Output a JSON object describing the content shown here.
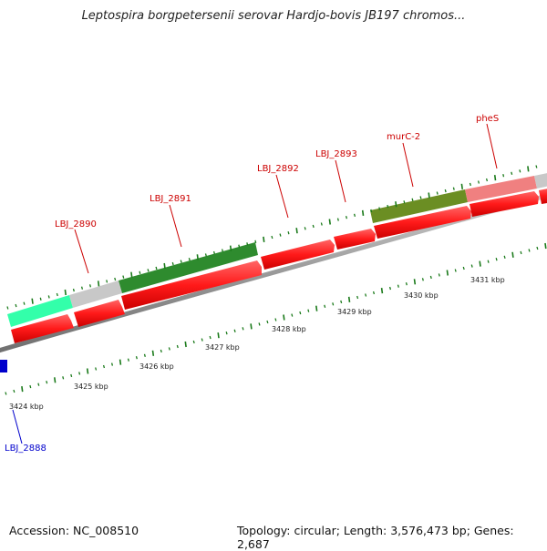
{
  "title": "Leptospira borgpetersenii serovar Hardjo-bovis JB197 chromos...",
  "accession_text": "Accession: NC_008510",
  "summary_text": "Topology: circular; Length: 3,576,473 bp; Genes: 2,687",
  "scale": {
    "tick_labels": [
      "3424 kbp",
      "3425 kbp",
      "3426 kbp",
      "3427 kbp",
      "3428 kbp",
      "3429 kbp",
      "3430 kbp",
      "3431 kbp"
    ]
  },
  "colors": {
    "forward_cds": "#ff1a1a",
    "named_gene_label": "#cc0000",
    "other_gene_label": "#0000cc",
    "backbone": "#9a9a9a",
    "tick": "#1a7a1a"
  },
  "genes": [
    {
      "name": "LBJ_2888",
      "color": "#0000cc"
    },
    {
      "name": "LBJ_2890",
      "color": "#cc0000"
    },
    {
      "name": "LBJ_2891",
      "color": "#cc0000"
    },
    {
      "name": "LBJ_2892",
      "color": "#cc0000"
    },
    {
      "name": "LBJ_2893",
      "color": "#cc0000"
    },
    {
      "name": "murC-2",
      "color": "#cc0000"
    },
    {
      "name": "pheS",
      "color": "#cc0000"
    }
  ],
  "feature_track_colors": [
    "#33ffaa",
    "#c8c8c8",
    "#2e8b2e",
    "#6b8e23",
    "#f08080",
    "#c8c8c8"
  ]
}
